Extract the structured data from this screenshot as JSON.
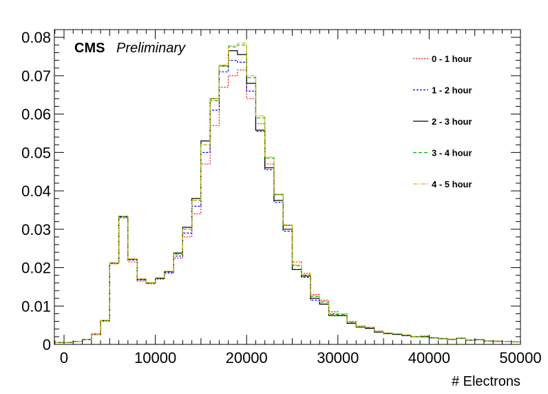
{
  "chart_data": {
    "type": "line",
    "step": true,
    "title": "",
    "label_bold": "CMS",
    "label_italic": "Preliminary",
    "xlabel": "# Electrons",
    "ylabel": "",
    "xlim": [
      0,
      50000
    ],
    "ylim": [
      0,
      0.082
    ],
    "x_ticks": [
      "0",
      "10000",
      "20000",
      "30000",
      "40000",
      "50000"
    ],
    "y_ticks": [
      "0",
      "0.01",
      "0.02",
      "0.03",
      "0.04",
      "0.05",
      "0.06",
      "0.07",
      "0.08"
    ],
    "bin_width": 1000,
    "bin_edges_start": -1000,
    "legend_position": "top-right",
    "grid": false,
    "series": [
      {
        "name": "0 - 1 hour",
        "color": "#ff0000",
        "dash": "2,2",
        "values": [
          0.0005,
          0.0005,
          0.0008,
          0.0012,
          0.0025,
          0.006,
          0.021,
          0.033,
          0.0215,
          0.0165,
          0.0158,
          0.017,
          0.0185,
          0.0225,
          0.028,
          0.034,
          0.047,
          0.057,
          0.067,
          0.07,
          0.0715,
          0.064,
          0.0575,
          0.047,
          0.039,
          0.031,
          0.0215,
          0.0185,
          0.013,
          0.0115,
          0.0085,
          0.008,
          0.006,
          0.0048,
          0.0045,
          0.0035,
          0.003,
          0.0028,
          0.0025,
          0.002,
          0.0022,
          0.0018,
          0.0016,
          0.0014,
          0.0017,
          0.0012,
          0.0013,
          0.0009,
          0.0009,
          0.0008,
          0.0007,
          0.0005
        ]
      },
      {
        "name": "1 - 2 hour",
        "color": "#0000ff",
        "dash": "3,2",
        "values": [
          0.0005,
          0.0005,
          0.0008,
          0.0013,
          0.0027,
          0.0062,
          0.0212,
          0.033,
          0.022,
          0.0168,
          0.016,
          0.0172,
          0.0188,
          0.023,
          0.029,
          0.036,
          0.05,
          0.061,
          0.071,
          0.074,
          0.0735,
          0.066,
          0.0555,
          0.0455,
          0.037,
          0.0295,
          0.0195,
          0.0175,
          0.0115,
          0.0105,
          0.008,
          0.0075,
          0.0055,
          0.0045,
          0.0042,
          0.0032,
          0.0028,
          0.0026,
          0.0023,
          0.002,
          0.002,
          0.0017,
          0.0015,
          0.0013,
          0.0016,
          0.0011,
          0.0012,
          0.0009,
          0.0008,
          0.0008,
          0.0007,
          0.0005
        ]
      },
      {
        "name": "2 - 3 hour",
        "color": "#000000",
        "dash": "",
        "values": [
          0.0005,
          0.0005,
          0.0008,
          0.0013,
          0.0027,
          0.0062,
          0.0212,
          0.0333,
          0.0222,
          0.017,
          0.016,
          0.0172,
          0.019,
          0.0238,
          0.0305,
          0.038,
          0.053,
          0.064,
          0.0725,
          0.0765,
          0.0755,
          0.068,
          0.0558,
          0.046,
          0.0375,
          0.03,
          0.0195,
          0.0178,
          0.012,
          0.0105,
          0.0075,
          0.0075,
          0.0055,
          0.0045,
          0.0042,
          0.0032,
          0.0028,
          0.0026,
          0.0023,
          0.002,
          0.002,
          0.0017,
          0.0015,
          0.0013,
          0.0016,
          0.0011,
          0.0012,
          0.0009,
          0.0008,
          0.0008,
          0.0007,
          0.0005
        ]
      },
      {
        "name": "3 - 4 hour",
        "color": "#00aa00",
        "dash": "5,3",
        "values": [
          0.0005,
          0.0005,
          0.0008,
          0.0013,
          0.0027,
          0.0062,
          0.0212,
          0.0333,
          0.0222,
          0.017,
          0.016,
          0.0173,
          0.019,
          0.0235,
          0.03,
          0.0375,
          0.052,
          0.0635,
          0.0725,
          0.0775,
          0.078,
          0.0695,
          0.059,
          0.0485,
          0.039,
          0.031,
          0.0205,
          0.018,
          0.0125,
          0.011,
          0.0078,
          0.0078,
          0.0058,
          0.0046,
          0.0044,
          0.0033,
          0.0029,
          0.0027,
          0.0024,
          0.002,
          0.0021,
          0.0017,
          0.0015,
          0.0013,
          0.0016,
          0.0011,
          0.0012,
          0.0009,
          0.0008,
          0.0008,
          0.0007,
          0.0005
        ]
      },
      {
        "name": "4 - 5 hour",
        "color": "#e6b400",
        "dash": "6,2,2,2",
        "values": [
          0.0005,
          0.0005,
          0.0008,
          0.0013,
          0.0027,
          0.0063,
          0.0213,
          0.0335,
          0.0223,
          0.0171,
          0.0161,
          0.0174,
          0.0191,
          0.0236,
          0.03,
          0.0375,
          0.052,
          0.064,
          0.0728,
          0.0778,
          0.0785,
          0.07,
          0.0595,
          0.0488,
          0.0392,
          0.0312,
          0.0207,
          0.0182,
          0.0127,
          0.0112,
          0.008,
          0.008,
          0.0059,
          0.0047,
          0.0045,
          0.0034,
          0.003,
          0.0028,
          0.0025,
          0.0021,
          0.0022,
          0.0018,
          0.0016,
          0.0014,
          0.0017,
          0.0012,
          0.0013,
          0.0009,
          0.0009,
          0.0008,
          0.0007,
          0.0005
        ]
      }
    ]
  }
}
